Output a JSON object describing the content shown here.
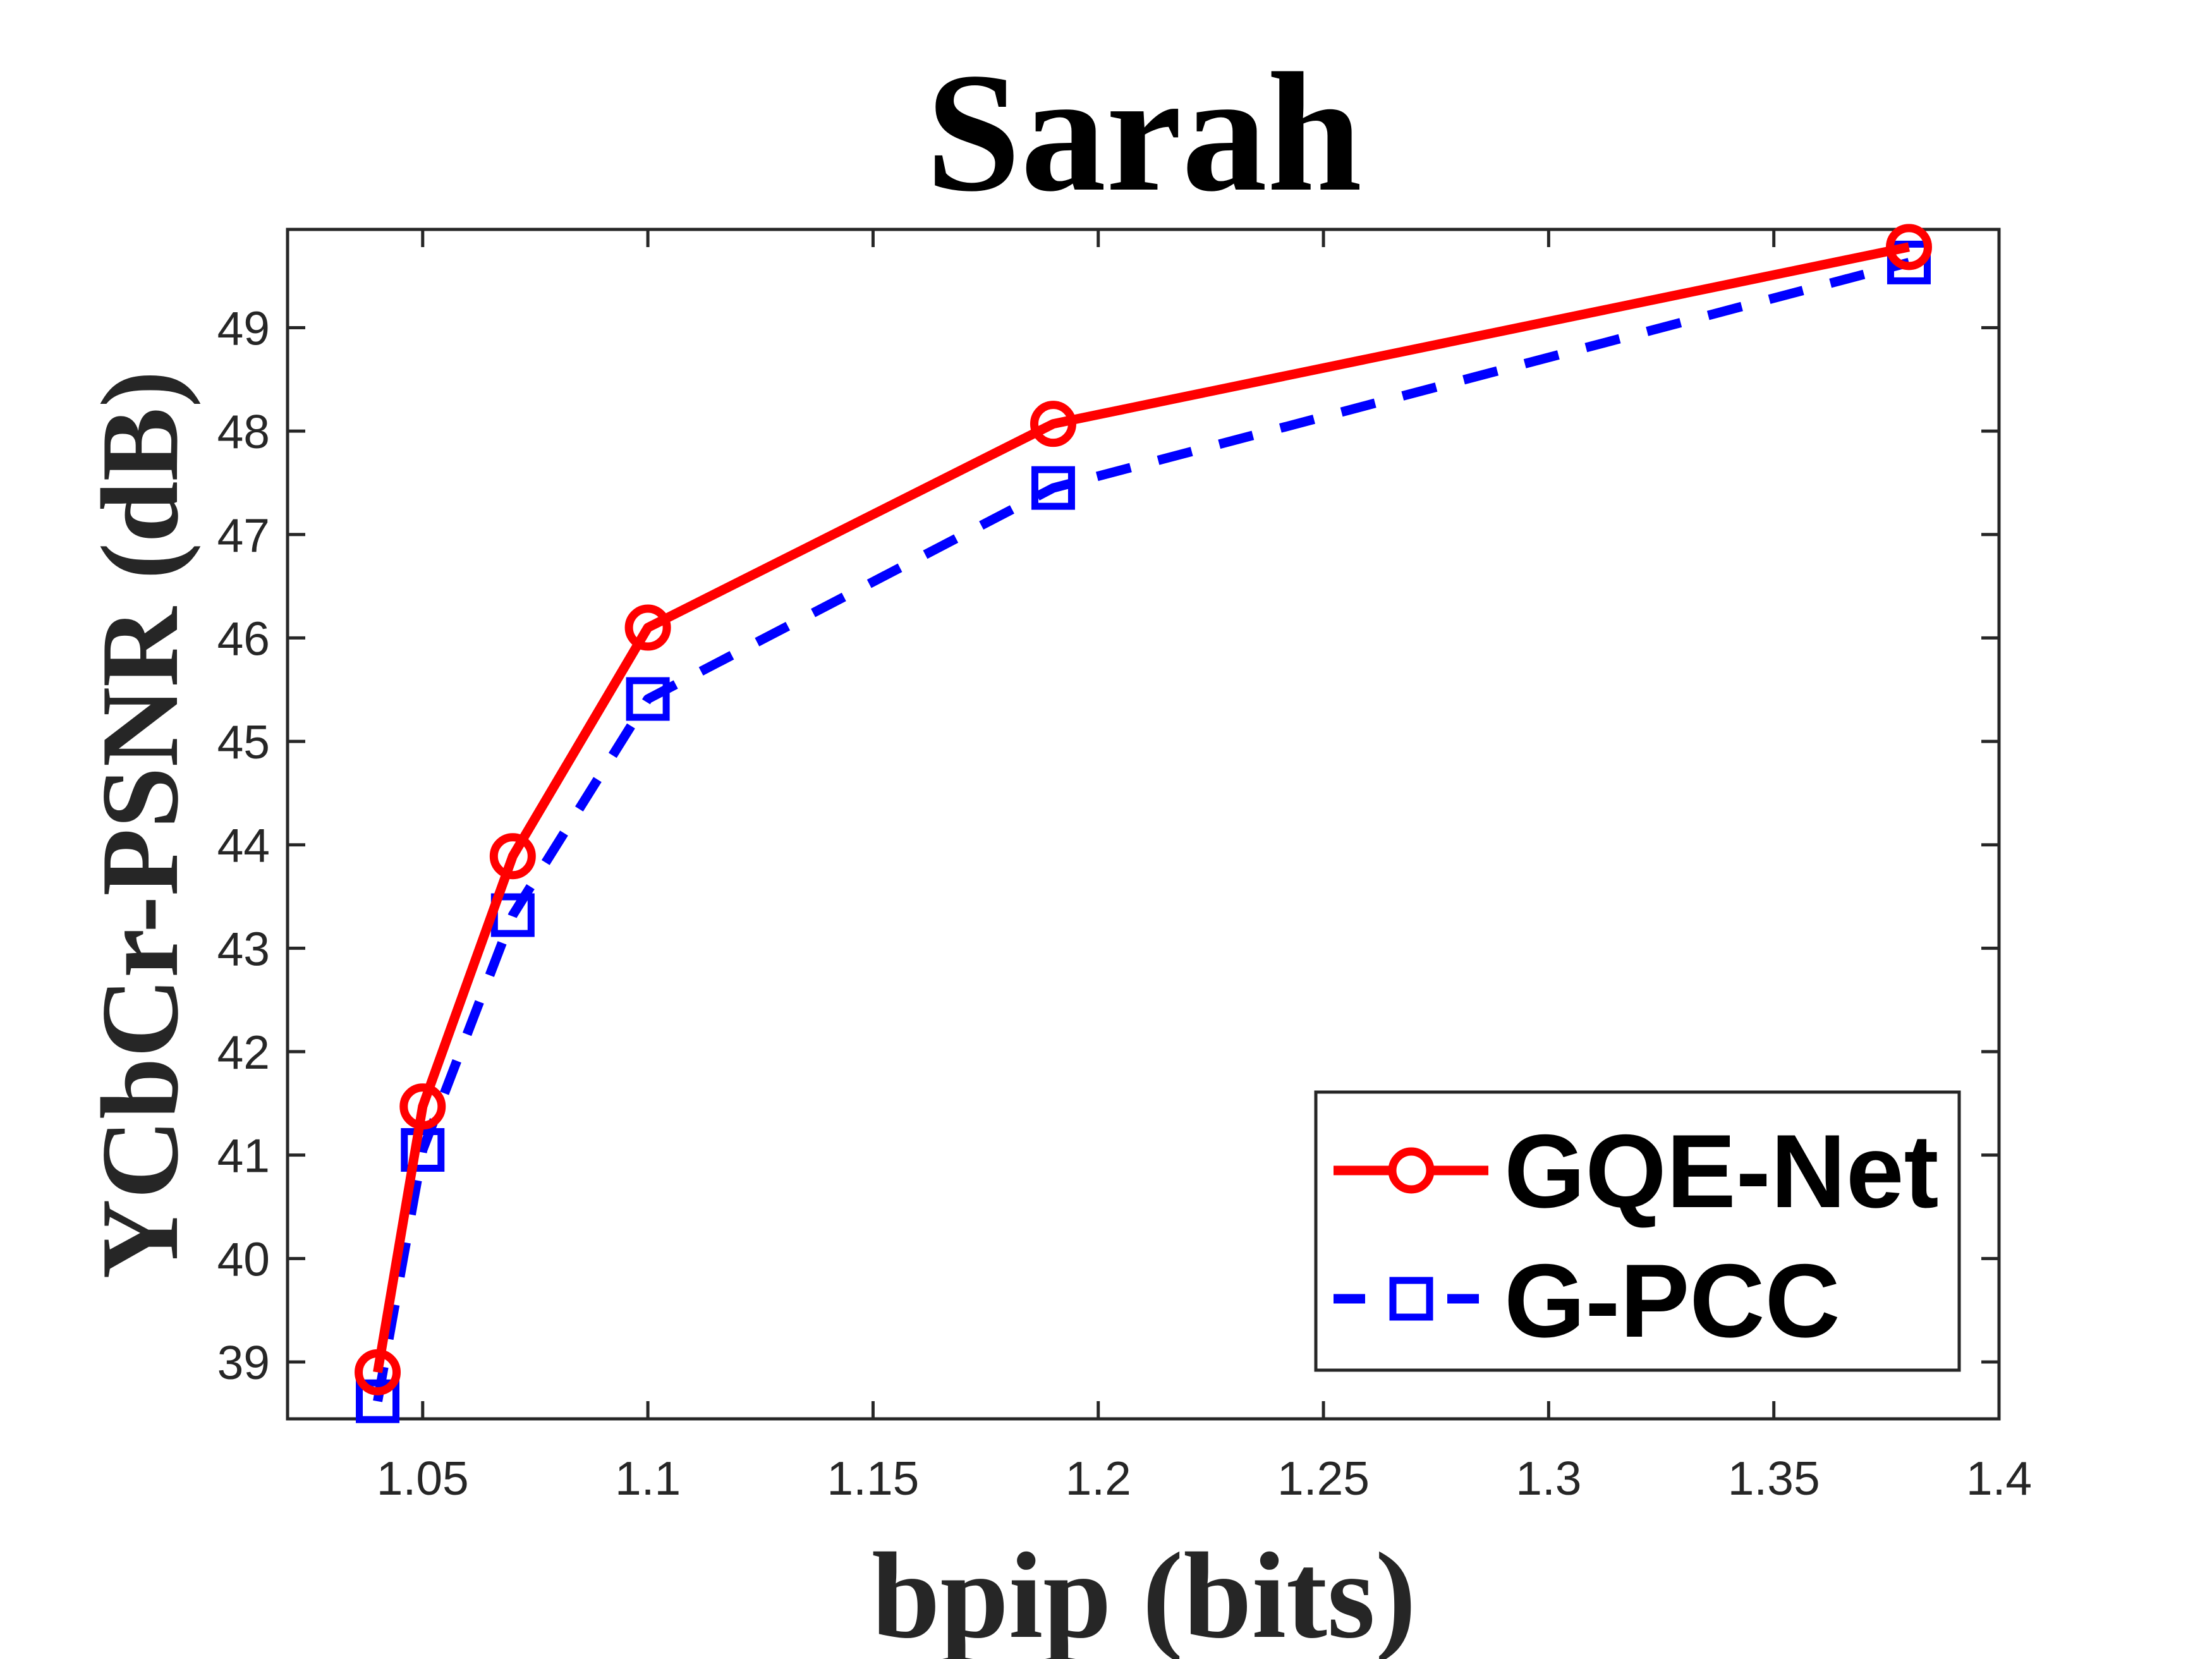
{
  "chart_data": {
    "type": "line",
    "title": "Sarah",
    "xlabel": "bpip (bits)",
    "ylabel": "YCbCr-PSNR (dB)",
    "xlim": [
      1.02,
      1.4
    ],
    "ylim": [
      38.45,
      49.95
    ],
    "xticks": [
      1.05,
      1.1,
      1.15,
      1.2,
      1.25,
      1.3,
      1.35,
      1.4
    ],
    "xtick_labels": [
      "1.05",
      "1.1",
      "1.15",
      "1.2",
      "1.25",
      "1.3",
      "1.35",
      "1.4"
    ],
    "yticks": [
      39,
      40,
      41,
      42,
      43,
      44,
      45,
      46,
      47,
      48,
      49
    ],
    "ytick_labels": [
      "39",
      "40",
      "41",
      "42",
      "43",
      "44",
      "45",
      "46",
      "47",
      "48",
      "49"
    ],
    "legend_position": "bottom-right",
    "series": [
      {
        "name": "GQE-Net",
        "color": "#ff0000",
        "line_style": "solid",
        "marker": "circle",
        "x": [
          1.04,
          1.05,
          1.07,
          1.1,
          1.19,
          1.38
        ],
        "y": [
          38.9,
          41.47,
          43.89,
          46.1,
          48.07,
          49.78
        ]
      },
      {
        "name": "G-PCC",
        "color": "#0000ff",
        "line_style": "dashed",
        "marker": "square",
        "x": [
          1.04,
          1.05,
          1.07,
          1.1,
          1.19,
          1.38
        ],
        "y": [
          38.62,
          41.05,
          43.32,
          45.41,
          47.45,
          49.63
        ]
      }
    ]
  }
}
